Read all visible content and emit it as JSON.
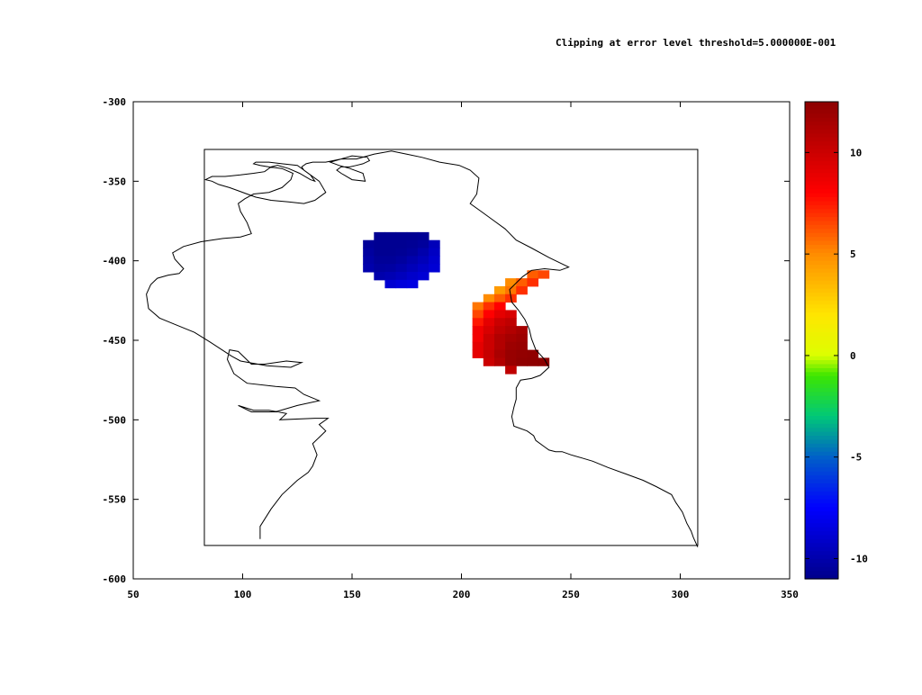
{
  "title": "Clipping at error level threshold=5.000000E-001",
  "chart_data": {
    "type": "heatmap",
    "title": "Clipping at error level threshold=5.000000E-001",
    "xlabel": "",
    "ylabel": "",
    "xlim": [
      50,
      350
    ],
    "ylim": [
      -600,
      -300
    ],
    "xticks": [
      "50",
      "100",
      "150",
      "200",
      "250",
      "300",
      "350"
    ],
    "yticks": [
      "-300",
      "-350",
      "-400",
      "-450",
      "-500",
      "-550",
      "-600"
    ],
    "colorbar": {
      "range": [
        -11,
        12.5
      ],
      "ticks": [
        "10",
        "5",
        "0",
        "-5",
        "-10"
      ],
      "colormap": [
        "#00008b",
        "#0000ff",
        "#00bfff",
        "#00ff00",
        "#ffff00",
        "#ff8c00",
        "#ff0000",
        "#8b0000"
      ]
    },
    "frame": {
      "x": [
        82.5,
        308
      ],
      "y": [
        -579,
        -330
      ]
    },
    "regions": [
      {
        "name": "blue cluster",
        "x_range": [
          155,
          188
        ],
        "y_range": [
          -415,
          -381
        ],
        "value_range": [
          -11,
          -8
        ]
      },
      {
        "name": "red cluster",
        "x_range": [
          205,
          240
        ],
        "y_range": [
          -471,
          -405
        ],
        "value_range": [
          4,
          12.5
        ]
      }
    ],
    "blue_cells": [
      [
        160,
        -382,
        -10.8
      ],
      [
        165,
        -382,
        -10.8
      ],
      [
        170,
        -382,
        -10.8
      ],
      [
        175,
        -382,
        -10.8
      ],
      [
        180,
        -382,
        -10.7
      ],
      [
        155,
        -387,
        -10.6
      ],
      [
        160,
        -387,
        -10.8
      ],
      [
        165,
        -387,
        -10.8
      ],
      [
        170,
        -387,
        -10.8
      ],
      [
        175,
        -387,
        -10.7
      ],
      [
        180,
        -387,
        -10.5
      ],
      [
        185,
        -387,
        -9.6
      ],
      [
        155,
        -392,
        -10.4
      ],
      [
        160,
        -392,
        -10.8
      ],
      [
        165,
        -392,
        -10.8
      ],
      [
        170,
        -392,
        -10.7
      ],
      [
        175,
        -392,
        -10.5
      ],
      [
        180,
        -392,
        -10
      ],
      [
        185,
        -392,
        -9.3
      ],
      [
        155,
        -397,
        -10.2
      ],
      [
        160,
        -397,
        -10.6
      ],
      [
        165,
        -397,
        -10.6
      ],
      [
        170,
        -397,
        -10.4
      ],
      [
        175,
        -397,
        -10
      ],
      [
        180,
        -397,
        -9.6
      ],
      [
        185,
        -397,
        -9
      ],
      [
        155,
        -402,
        -10
      ],
      [
        160,
        -402,
        -10.4
      ],
      [
        165,
        -402,
        -10.3
      ],
      [
        170,
        -402,
        -10
      ],
      [
        175,
        -402,
        -9.6
      ],
      [
        180,
        -402,
        -9.2
      ],
      [
        185,
        -402,
        -8.8
      ],
      [
        160,
        -407,
        -10
      ],
      [
        165,
        -407,
        -9.8
      ],
      [
        170,
        -407,
        -9.5
      ],
      [
        175,
        -407,
        -9.1
      ],
      [
        180,
        -407,
        -8.8
      ],
      [
        165,
        -412,
        -8.9
      ],
      [
        170,
        -412,
        -8.6
      ],
      [
        175,
        -412,
        -8.4
      ]
    ],
    "red_cells": [
      [
        230,
        -406,
        6
      ],
      [
        235,
        -406,
        6.5
      ],
      [
        220,
        -411,
        5
      ],
      [
        225,
        -411,
        6
      ],
      [
        230,
        -411,
        7
      ],
      [
        215,
        -416,
        4.5
      ],
      [
        220,
        -416,
        5.5
      ],
      [
        225,
        -416,
        7
      ],
      [
        210,
        -421,
        5
      ],
      [
        215,
        -421,
        6
      ],
      [
        220,
        -421,
        7
      ],
      [
        205,
        -426,
        5.5
      ],
      [
        210,
        -426,
        7
      ],
      [
        215,
        -426,
        8
      ],
      [
        205,
        -431,
        6.5
      ],
      [
        210,
        -431,
        8
      ],
      [
        215,
        -431,
        9
      ],
      [
        220,
        -431,
        9.5
      ],
      [
        205,
        -436,
        7.5
      ],
      [
        210,
        -436,
        9
      ],
      [
        215,
        -436,
        10
      ],
      [
        220,
        -436,
        10.5
      ],
      [
        205,
        -441,
        8.5
      ],
      [
        210,
        -441,
        9.5
      ],
      [
        215,
        -441,
        10.5
      ],
      [
        220,
        -441,
        11
      ],
      [
        225,
        -441,
        11.5
      ],
      [
        205,
        -446,
        8.5
      ],
      [
        210,
        -446,
        10
      ],
      [
        215,
        -446,
        11
      ],
      [
        220,
        -446,
        11.5
      ],
      [
        225,
        -446,
        11.8
      ],
      [
        205,
        -451,
        9
      ],
      [
        210,
        -451,
        10
      ],
      [
        215,
        -451,
        11
      ],
      [
        220,
        -451,
        11.8
      ],
      [
        225,
        -451,
        12
      ],
      [
        205,
        -456,
        9
      ],
      [
        210,
        -456,
        10.2
      ],
      [
        215,
        -456,
        11.3
      ],
      [
        220,
        -456,
        12
      ],
      [
        225,
        -456,
        12.2
      ],
      [
        230,
        -456,
        12.3
      ],
      [
        210,
        -461,
        10
      ],
      [
        215,
        -461,
        11
      ],
      [
        220,
        -461,
        12
      ],
      [
        225,
        -461,
        12.3
      ],
      [
        230,
        -461,
        12.4
      ],
      [
        235,
        -461,
        12.5
      ],
      [
        220,
        -466,
        10.5
      ]
    ],
    "outline": [
      [
        108,
        -575
      ],
      [
        108,
        -567
      ],
      [
        113,
        -556
      ],
      [
        118,
        -547
      ],
      [
        125,
        -538
      ],
      [
        130,
        -533
      ],
      [
        132,
        -529
      ],
      [
        134,
        -522
      ],
      [
        132,
        -515
      ],
      [
        138,
        -507
      ],
      [
        135,
        -503
      ],
      [
        139,
        -499
      ],
      [
        133,
        -499
      ],
      [
        117,
        -500
      ],
      [
        120,
        -496
      ],
      [
        112,
        -494
      ],
      [
        105,
        -494
      ],
      [
        98,
        -491
      ],
      [
        104,
        -495
      ],
      [
        115,
        -495
      ],
      [
        125,
        -491
      ],
      [
        135,
        -488
      ],
      [
        128,
        -484
      ],
      [
        124,
        -480
      ],
      [
        115,
        -479
      ],
      [
        102,
        -477
      ],
      [
        96,
        -471
      ],
      [
        93,
        -462
      ],
      [
        94,
        -456
      ],
      [
        98,
        -457
      ],
      [
        104,
        -465
      ],
      [
        110,
        -465
      ],
      [
        120,
        -463
      ],
      [
        127,
        -464
      ],
      [
        122,
        -467
      ],
      [
        111,
        -466
      ],
      [
        99,
        -463
      ],
      [
        95,
        -460
      ],
      [
        85,
        -451
      ],
      [
        78,
        -445
      ],
      [
        69,
        -440
      ],
      [
        62,
        -436
      ],
      [
        57,
        -430
      ],
      [
        56,
        -421
      ],
      [
        58,
        -415
      ],
      [
        61,
        -411
      ],
      [
        66,
        -409
      ],
      [
        71,
        -408
      ],
      [
        73,
        -405
      ],
      [
        69,
        -399
      ],
      [
        68,
        -395
      ],
      [
        73,
        -391
      ],
      [
        81,
        -388
      ],
      [
        91,
        -386
      ],
      [
        99,
        -385
      ],
      [
        104,
        -383
      ],
      [
        102,
        -376
      ],
      [
        99,
        -369
      ],
      [
        98,
        -364
      ],
      [
        101,
        -361
      ],
      [
        105,
        -358
      ],
      [
        112,
        -357
      ],
      [
        118,
        -354
      ],
      [
        122,
        -349
      ],
      [
        123,
        -345
      ],
      [
        118,
        -342
      ],
      [
        112,
        -341
      ],
      [
        108,
        -340
      ],
      [
        105,
        -339
      ],
      [
        106,
        -338
      ],
      [
        112,
        -338
      ],
      [
        118,
        -339
      ],
      [
        125,
        -340
      ],
      [
        130,
        -345
      ],
      [
        135,
        -350
      ],
      [
        138,
        -357
      ],
      [
        133,
        -362
      ],
      [
        128,
        -364
      ],
      [
        121,
        -363
      ],
      [
        113,
        -362
      ],
      [
        106,
        -360
      ],
      [
        102,
        -358
      ],
      [
        98,
        -356
      ],
      [
        94,
        -354
      ],
      [
        89,
        -352
      ],
      [
        86,
        -350
      ],
      [
        83,
        -349
      ],
      [
        86,
        -347
      ],
      [
        92,
        -347
      ],
      [
        99,
        -346
      ],
      [
        105,
        -345
      ],
      [
        110,
        -344
      ],
      [
        113,
        -341
      ],
      [
        116,
        -340
      ],
      [
        121,
        -342
      ],
      [
        126,
        -345
      ],
      [
        131,
        -349
      ],
      [
        133,
        -350
      ],
      [
        131,
        -346
      ],
      [
        128,
        -343
      ],
      [
        127,
        -341
      ],
      [
        129,
        -339
      ],
      [
        132,
        -338
      ],
      [
        138,
        -338
      ],
      [
        145,
        -336
      ],
      [
        150,
        -334
      ],
      [
        157,
        -335
      ],
      [
        158,
        -337
      ],
      [
        155,
        -339
      ],
      [
        152,
        -340
      ],
      [
        149,
        -341
      ],
      [
        145,
        -341
      ],
      [
        143,
        -343
      ],
      [
        145,
        -345
      ],
      [
        150,
        -349
      ],
      [
        156,
        -350
      ],
      [
        155,
        -345
      ],
      [
        149,
        -342
      ],
      [
        144,
        -340
      ],
      [
        140,
        -338
      ],
      [
        145,
        -336
      ],
      [
        152,
        -336
      ],
      [
        160,
        -333
      ],
      [
        168,
        -331
      ],
      [
        175,
        -333
      ],
      [
        182,
        -335
      ],
      [
        190,
        -338
      ],
      [
        199,
        -340
      ],
      [
        204,
        -343
      ],
      [
        208,
        -348
      ],
      [
        207,
        -358
      ],
      [
        204,
        -364
      ],
      [
        209,
        -369
      ],
      [
        215,
        -375
      ],
      [
        220,
        -380
      ],
      [
        225,
        -387
      ],
      [
        232,
        -392
      ],
      [
        240,
        -398
      ],
      [
        249,
        -404
      ],
      [
        245,
        -406
      ],
      [
        238,
        -405
      ],
      [
        232,
        -406
      ],
      [
        228,
        -410
      ],
      [
        222,
        -418
      ],
      [
        223,
        -426
      ],
      [
        226,
        -431
      ],
      [
        229,
        -437
      ],
      [
        231,
        -443
      ],
      [
        232,
        -449
      ],
      [
        234,
        -456
      ],
      [
        238,
        -462
      ],
      [
        240,
        -467
      ],
      [
        236,
        -472
      ],
      [
        232,
        -474
      ],
      [
        227,
        -475
      ],
      [
        225,
        -480
      ],
      [
        225,
        -487
      ],
      [
        224,
        -492
      ],
      [
        223,
        -498
      ],
      [
        224,
        -504
      ],
      [
        230,
        -507
      ],
      [
        233,
        -510
      ],
      [
        234,
        -513
      ],
      [
        238,
        -517
      ],
      [
        240,
        -519
      ],
      [
        243,
        -520
      ],
      [
        246,
        -520
      ],
      [
        250,
        -522
      ],
      [
        255,
        -524
      ],
      [
        260,
        -526
      ],
      [
        267,
        -530
      ],
      [
        275,
        -534
      ],
      [
        283,
        -538
      ],
      [
        289,
        -542
      ],
      [
        296,
        -547
      ],
      [
        298,
        -552
      ],
      [
        301,
        -558
      ],
      [
        303,
        -565
      ],
      [
        305,
        -570
      ],
      [
        306,
        -574
      ],
      [
        308,
        -580
      ]
    ]
  }
}
